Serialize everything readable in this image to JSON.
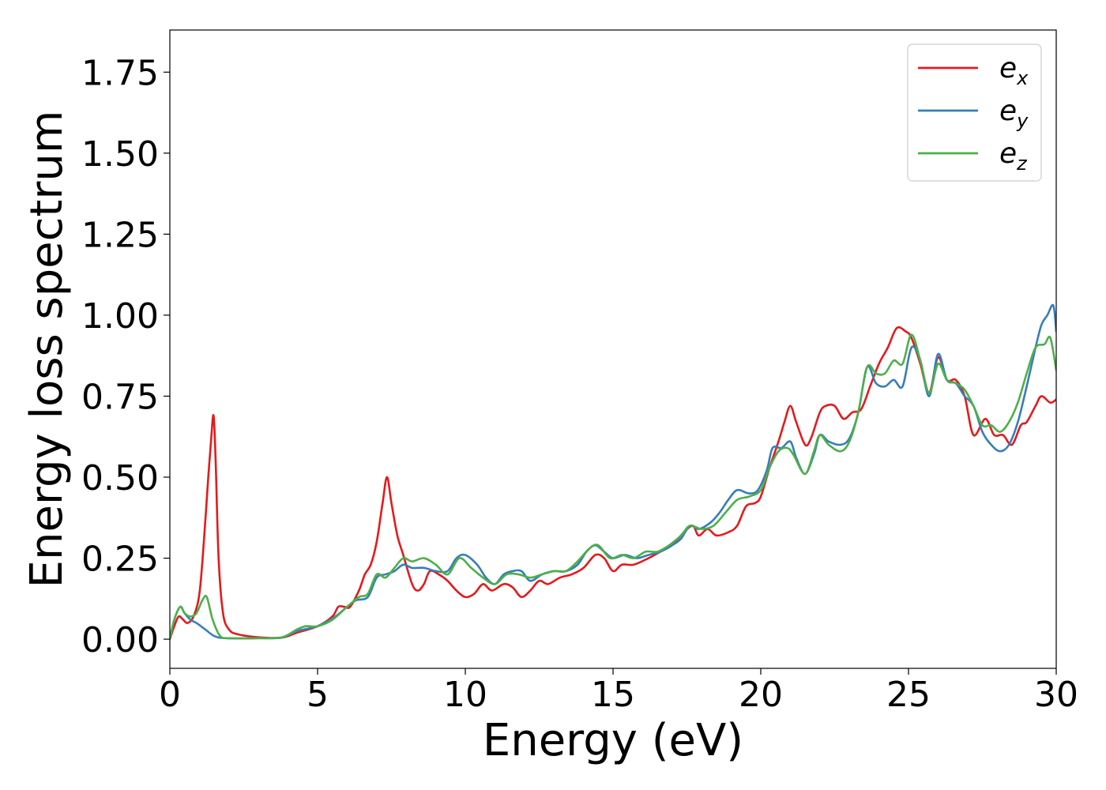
{
  "chart_data": {
    "type": "line",
    "title": "",
    "xlabel": "Energy (eV)",
    "ylabel": "Energy loss spectrum",
    "xlim": [
      0,
      30
    ],
    "ylim": [
      -0.09,
      1.88
    ],
    "xticks": [
      0,
      5,
      10,
      15,
      20,
      25,
      30
    ],
    "xtick_labels": [
      "0",
      "5",
      "10",
      "15",
      "20",
      "25",
      "30"
    ],
    "yticks": [
      0.0,
      0.25,
      0.5,
      0.75,
      1.0,
      1.25,
      1.5,
      1.75
    ],
    "ytick_labels": [
      "0.00",
      "0.25",
      "0.50",
      "0.75",
      "1.00",
      "1.25",
      "1.50",
      "1.75"
    ],
    "grid": false,
    "legend_position": "top-right",
    "series": [
      {
        "name": "e_x",
        "label_main": "e",
        "label_sub": "x",
        "color": "#e41a1c",
        "points": [
          [
            0,
            0.0
          ],
          [
            0.15,
            0.04
          ],
          [
            0.3,
            0.07
          ],
          [
            0.45,
            0.06
          ],
          [
            0.6,
            0.05
          ],
          [
            0.8,
            0.07
          ],
          [
            1.0,
            0.14
          ],
          [
            1.15,
            0.3
          ],
          [
            1.3,
            0.5
          ],
          [
            1.4,
            0.62
          ],
          [
            1.48,
            0.69
          ],
          [
            1.55,
            0.55
          ],
          [
            1.65,
            0.25
          ],
          [
            1.8,
            0.08
          ],
          [
            2.0,
            0.03
          ],
          [
            2.3,
            0.015
          ],
          [
            3.0,
            0.006
          ],
          [
            3.8,
            0.005
          ],
          [
            4.3,
            0.02
          ],
          [
            5.0,
            0.04
          ],
          [
            5.5,
            0.07
          ],
          [
            5.7,
            0.1
          ],
          [
            5.9,
            0.1
          ],
          [
            6.1,
            0.1
          ],
          [
            6.4,
            0.15
          ],
          [
            6.6,
            0.2
          ],
          [
            6.8,
            0.23
          ],
          [
            7.0,
            0.3
          ],
          [
            7.2,
            0.42
          ],
          [
            7.35,
            0.5
          ],
          [
            7.5,
            0.42
          ],
          [
            7.7,
            0.32
          ],
          [
            7.9,
            0.26
          ],
          [
            8.2,
            0.17
          ],
          [
            8.4,
            0.15
          ],
          [
            8.6,
            0.17
          ],
          [
            8.8,
            0.21
          ],
          [
            9.1,
            0.2
          ],
          [
            9.4,
            0.18
          ],
          [
            9.7,
            0.15
          ],
          [
            10.0,
            0.13
          ],
          [
            10.3,
            0.14
          ],
          [
            10.6,
            0.17
          ],
          [
            10.9,
            0.15
          ],
          [
            11.3,
            0.17
          ],
          [
            11.6,
            0.16
          ],
          [
            11.9,
            0.13
          ],
          [
            12.2,
            0.15
          ],
          [
            12.5,
            0.18
          ],
          [
            12.8,
            0.17
          ],
          [
            13.2,
            0.19
          ],
          [
            13.6,
            0.2
          ],
          [
            14.0,
            0.22
          ],
          [
            14.4,
            0.26
          ],
          [
            14.7,
            0.25
          ],
          [
            15.0,
            0.21
          ],
          [
            15.3,
            0.23
          ],
          [
            15.7,
            0.23
          ],
          [
            16.2,
            0.25
          ],
          [
            16.6,
            0.27
          ],
          [
            17.0,
            0.29
          ],
          [
            17.4,
            0.33
          ],
          [
            17.7,
            0.35
          ],
          [
            17.9,
            0.32
          ],
          [
            18.2,
            0.34
          ],
          [
            18.5,
            0.32
          ],
          [
            18.9,
            0.33
          ],
          [
            19.2,
            0.35
          ],
          [
            19.5,
            0.41
          ],
          [
            19.8,
            0.42
          ],
          [
            20.0,
            0.44
          ],
          [
            20.3,
            0.53
          ],
          [
            20.6,
            0.61
          ],
          [
            20.8,
            0.67
          ],
          [
            21.0,
            0.72
          ],
          [
            21.2,
            0.67
          ],
          [
            21.5,
            0.6
          ],
          [
            21.7,
            0.62
          ],
          [
            22.0,
            0.7
          ],
          [
            22.2,
            0.72
          ],
          [
            22.5,
            0.72
          ],
          [
            22.8,
            0.68
          ],
          [
            23.1,
            0.7
          ],
          [
            23.4,
            0.71
          ],
          [
            23.7,
            0.78
          ],
          [
            24.0,
            0.85
          ],
          [
            24.3,
            0.9
          ],
          [
            24.6,
            0.96
          ],
          [
            24.9,
            0.95
          ],
          [
            25.1,
            0.93
          ],
          [
            25.4,
            0.85
          ],
          [
            25.7,
            0.76
          ],
          [
            26.0,
            0.87
          ],
          [
            26.3,
            0.8
          ],
          [
            26.6,
            0.8
          ],
          [
            26.9,
            0.75
          ],
          [
            27.2,
            0.63
          ],
          [
            27.6,
            0.68
          ],
          [
            27.9,
            0.63
          ],
          [
            28.2,
            0.63
          ],
          [
            28.5,
            0.6
          ],
          [
            28.8,
            0.66
          ],
          [
            29.0,
            0.67
          ],
          [
            29.3,
            0.72
          ],
          [
            29.5,
            0.75
          ],
          [
            29.8,
            0.73
          ],
          [
            30.0,
            0.74
          ]
        ]
      },
      {
        "name": "e_y",
        "label_main": "e",
        "label_sub": "y",
        "color": "#377eb8",
        "points": [
          [
            0,
            0.0
          ],
          [
            0.15,
            0.06
          ],
          [
            0.35,
            0.1
          ],
          [
            0.5,
            0.08
          ],
          [
            0.7,
            0.06
          ],
          [
            0.9,
            0.05
          ],
          [
            1.2,
            0.03
          ],
          [
            1.5,
            0.01
          ],
          [
            1.9,
            0.003
          ],
          [
            3.0,
            0.003
          ],
          [
            3.8,
            0.005
          ],
          [
            4.3,
            0.025
          ],
          [
            5.0,
            0.04
          ],
          [
            5.6,
            0.07
          ],
          [
            6.0,
            0.1
          ],
          [
            6.3,
            0.12
          ],
          [
            6.7,
            0.13
          ],
          [
            7.0,
            0.19
          ],
          [
            7.3,
            0.2
          ],
          [
            7.6,
            0.21
          ],
          [
            7.9,
            0.23
          ],
          [
            8.2,
            0.22
          ],
          [
            8.6,
            0.22
          ],
          [
            9.0,
            0.21
          ],
          [
            9.4,
            0.21
          ],
          [
            9.7,
            0.25
          ],
          [
            10.0,
            0.26
          ],
          [
            10.4,
            0.23
          ],
          [
            10.7,
            0.19
          ],
          [
            11.0,
            0.17
          ],
          [
            11.3,
            0.2
          ],
          [
            11.6,
            0.21
          ],
          [
            11.9,
            0.21
          ],
          [
            12.2,
            0.18
          ],
          [
            12.6,
            0.2
          ],
          [
            13.0,
            0.21
          ],
          [
            13.4,
            0.21
          ],
          [
            13.8,
            0.23
          ],
          [
            14.1,
            0.27
          ],
          [
            14.4,
            0.29
          ],
          [
            14.7,
            0.27
          ],
          [
            15.0,
            0.25
          ],
          [
            15.4,
            0.26
          ],
          [
            15.8,
            0.25
          ],
          [
            16.2,
            0.26
          ],
          [
            16.6,
            0.27
          ],
          [
            17.0,
            0.29
          ],
          [
            17.3,
            0.31
          ],
          [
            17.6,
            0.35
          ],
          [
            17.9,
            0.34
          ],
          [
            18.3,
            0.36
          ],
          [
            18.6,
            0.39
          ],
          [
            18.9,
            0.43
          ],
          [
            19.2,
            0.46
          ],
          [
            19.6,
            0.45
          ],
          [
            19.9,
            0.46
          ],
          [
            20.2,
            0.52
          ],
          [
            20.4,
            0.59
          ],
          [
            20.7,
            0.59
          ],
          [
            21.0,
            0.61
          ],
          [
            21.2,
            0.56
          ],
          [
            21.5,
            0.51
          ],
          [
            21.8,
            0.57
          ],
          [
            22.0,
            0.63
          ],
          [
            22.3,
            0.61
          ],
          [
            22.7,
            0.6
          ],
          [
            23.0,
            0.62
          ],
          [
            23.3,
            0.7
          ],
          [
            23.6,
            0.84
          ],
          [
            23.9,
            0.79
          ],
          [
            24.2,
            0.78
          ],
          [
            24.5,
            0.8
          ],
          [
            24.8,
            0.78
          ],
          [
            25.1,
            0.9
          ],
          [
            25.4,
            0.86
          ],
          [
            25.7,
            0.75
          ],
          [
            26.0,
            0.88
          ],
          [
            26.3,
            0.8
          ],
          [
            26.6,
            0.79
          ],
          [
            26.9,
            0.75
          ],
          [
            27.2,
            0.72
          ],
          [
            27.5,
            0.64
          ],
          [
            27.8,
            0.6
          ],
          [
            28.1,
            0.58
          ],
          [
            28.4,
            0.6
          ],
          [
            28.7,
            0.67
          ],
          [
            29.0,
            0.78
          ],
          [
            29.3,
            0.9
          ],
          [
            29.5,
            0.97
          ],
          [
            29.7,
            1.0
          ],
          [
            29.9,
            1.03
          ],
          [
            30.0,
            0.95
          ]
        ]
      },
      {
        "name": "e_z",
        "label_main": "e",
        "label_sub": "z",
        "color": "#4daf4a",
        "points": [
          [
            0,
            0.0
          ],
          [
            0.15,
            0.06
          ],
          [
            0.35,
            0.1
          ],
          [
            0.5,
            0.08
          ],
          [
            0.7,
            0.07
          ],
          [
            0.9,
            0.08
          ],
          [
            1.1,
            0.12
          ],
          [
            1.25,
            0.13
          ],
          [
            1.45,
            0.06
          ],
          [
            1.7,
            0.01
          ],
          [
            2.0,
            0.003
          ],
          [
            3.0,
            0.003
          ],
          [
            3.8,
            0.006
          ],
          [
            4.3,
            0.03
          ],
          [
            4.6,
            0.04
          ],
          [
            5.0,
            0.04
          ],
          [
            5.5,
            0.06
          ],
          [
            6.0,
            0.1
          ],
          [
            6.4,
            0.13
          ],
          [
            6.7,
            0.14
          ],
          [
            7.0,
            0.2
          ],
          [
            7.3,
            0.19
          ],
          [
            7.6,
            0.22
          ],
          [
            7.9,
            0.25
          ],
          [
            8.2,
            0.24
          ],
          [
            8.6,
            0.25
          ],
          [
            9.0,
            0.23
          ],
          [
            9.4,
            0.2
          ],
          [
            9.8,
            0.25
          ],
          [
            10.2,
            0.22
          ],
          [
            10.6,
            0.19
          ],
          [
            11.0,
            0.17
          ],
          [
            11.4,
            0.2
          ],
          [
            11.8,
            0.2
          ],
          [
            12.2,
            0.19
          ],
          [
            12.6,
            0.2
          ],
          [
            13.0,
            0.21
          ],
          [
            13.4,
            0.21
          ],
          [
            13.8,
            0.24
          ],
          [
            14.2,
            0.28
          ],
          [
            14.5,
            0.29
          ],
          [
            14.9,
            0.25
          ],
          [
            15.3,
            0.26
          ],
          [
            15.7,
            0.25
          ],
          [
            16.1,
            0.27
          ],
          [
            16.5,
            0.27
          ],
          [
            16.9,
            0.29
          ],
          [
            17.3,
            0.32
          ],
          [
            17.6,
            0.35
          ],
          [
            18.0,
            0.34
          ],
          [
            18.4,
            0.35
          ],
          [
            18.8,
            0.39
          ],
          [
            19.2,
            0.43
          ],
          [
            19.6,
            0.44
          ],
          [
            20.0,
            0.46
          ],
          [
            20.3,
            0.53
          ],
          [
            20.6,
            0.58
          ],
          [
            20.9,
            0.59
          ],
          [
            21.1,
            0.57
          ],
          [
            21.5,
            0.51
          ],
          [
            21.8,
            0.58
          ],
          [
            22.0,
            0.63
          ],
          [
            22.3,
            0.6
          ],
          [
            22.7,
            0.58
          ],
          [
            23.0,
            0.61
          ],
          [
            23.3,
            0.7
          ],
          [
            23.6,
            0.84
          ],
          [
            23.9,
            0.82
          ],
          [
            24.2,
            0.82
          ],
          [
            24.5,
            0.86
          ],
          [
            24.8,
            0.85
          ],
          [
            25.1,
            0.94
          ],
          [
            25.4,
            0.86
          ],
          [
            25.7,
            0.76
          ],
          [
            26.0,
            0.85
          ],
          [
            26.3,
            0.8
          ],
          [
            26.6,
            0.79
          ],
          [
            26.9,
            0.77
          ],
          [
            27.2,
            0.72
          ],
          [
            27.5,
            0.66
          ],
          [
            27.8,
            0.66
          ],
          [
            28.1,
            0.64
          ],
          [
            28.4,
            0.67
          ],
          [
            28.7,
            0.73
          ],
          [
            29.0,
            0.82
          ],
          [
            29.3,
            0.9
          ],
          [
            29.6,
            0.91
          ],
          [
            29.8,
            0.93
          ],
          [
            30.0,
            0.83
          ]
        ]
      }
    ]
  }
}
